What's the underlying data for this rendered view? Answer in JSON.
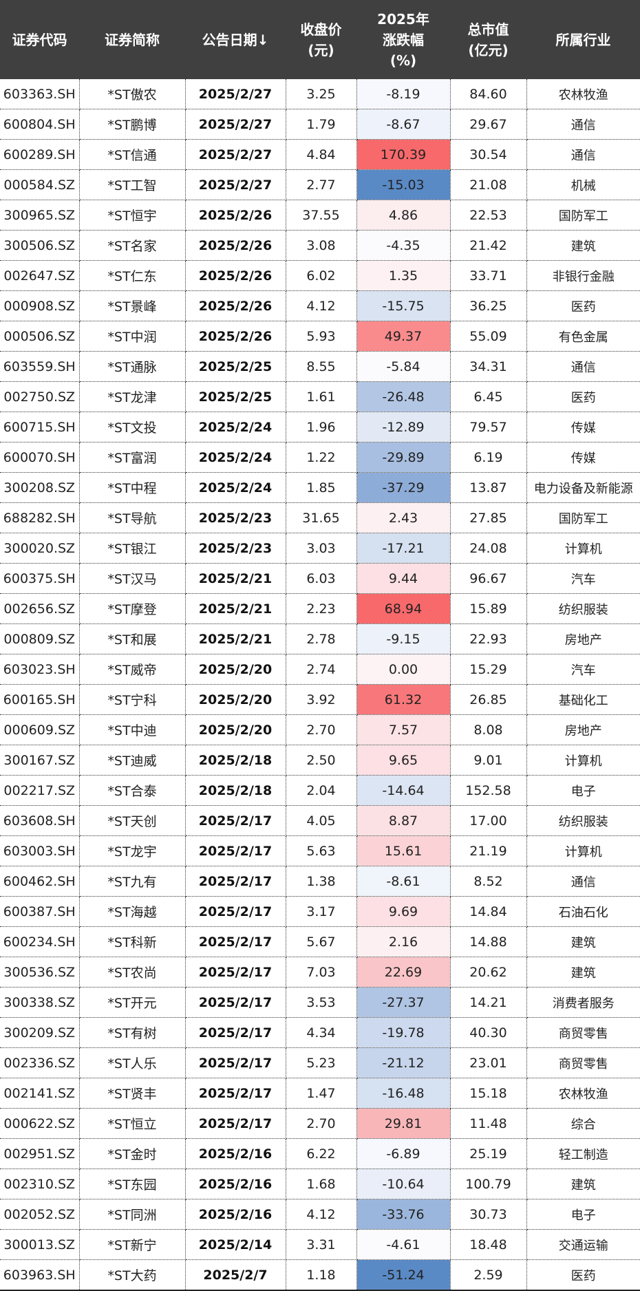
{
  "table": {
    "headers": [
      {
        "lines": [
          "证券代码"
        ]
      },
      {
        "lines": [
          "证券简称"
        ]
      },
      {
        "lines": [
          "公告日期↓"
        ]
      },
      {
        "lines": [
          "收盘价",
          "(元)"
        ]
      },
      {
        "lines": [
          "2025年",
          "涨跌幅",
          "(%)"
        ]
      },
      {
        "lines": [
          "总市值",
          "(亿元)"
        ]
      },
      {
        "lines": [
          "所属行业"
        ]
      }
    ],
    "rows": [
      {
        "code": "603363.SH",
        "name": "*ST傲农",
        "date": "2025/2/27",
        "close": "3.25",
        "chg": "-8.19",
        "cap": "84.60",
        "industry": "农林牧渔",
        "color": "#f7f8fd"
      },
      {
        "code": "600804.SH",
        "name": "*ST鹏博",
        "date": "2025/2/27",
        "close": "1.79",
        "chg": "-8.67",
        "cap": "29.67",
        "industry": "通信",
        "color": "#eef2fa"
      },
      {
        "code": "600289.SH",
        "name": "*ST信通",
        "date": "2025/2/27",
        "close": "4.84",
        "chg": "170.39",
        "cap": "30.54",
        "industry": "通信",
        "color": "#f8696b"
      },
      {
        "code": "000584.SZ",
        "name": "*ST工智",
        "date": "2025/2/27",
        "close": "2.77",
        "chg": "-15.03",
        "cap": "21.08",
        "industry": "机械",
        "color": "#5a8ac6"
      },
      {
        "code": "300965.SZ",
        "name": "*ST恒宇",
        "date": "2025/2/26",
        "close": "37.55",
        "chg": "4.86",
        "cap": "22.53",
        "industry": "国防军工",
        "color": "#fcedef"
      },
      {
        "code": "300506.SZ",
        "name": "*ST名家",
        "date": "2025/2/26",
        "close": "3.08",
        "chg": "-4.35",
        "cap": "21.42",
        "industry": "建筑",
        "color": "#fbfbfe"
      },
      {
        "code": "002647.SZ",
        "name": "*ST仁东",
        "date": "2025/2/26",
        "close": "6.02",
        "chg": "1.35",
        "cap": "33.71",
        "industry": "非银行金融",
        "color": "#fdf1f3"
      },
      {
        "code": "000908.SZ",
        "name": "*ST景峰",
        "date": "2025/2/26",
        "close": "4.12",
        "chg": "-15.75",
        "cap": "36.25",
        "industry": "医药",
        "color": "#d9e3f1"
      },
      {
        "code": "000506.SZ",
        "name": "*ST中润",
        "date": "2025/2/26",
        "close": "5.93",
        "chg": "49.37",
        "cap": "55.09",
        "industry": "有色金属",
        "color": "#f98b8d"
      },
      {
        "code": "603559.SH",
        "name": "*ST通脉",
        "date": "2025/2/25",
        "close": "8.55",
        "chg": "-5.84",
        "cap": "34.31",
        "industry": "通信",
        "color": "#fbfbfe"
      },
      {
        "code": "002750.SZ",
        "name": "*ST龙津",
        "date": "2025/2/25",
        "close": "1.61",
        "chg": "-26.48",
        "cap": "6.45",
        "industry": "医药",
        "color": "#b3c7e5"
      },
      {
        "code": "600715.SH",
        "name": "*ST文投",
        "date": "2025/2/24",
        "close": "1.96",
        "chg": "-12.89",
        "cap": "79.57",
        "industry": "传媒",
        "color": "#e2e9f5"
      },
      {
        "code": "600070.SH",
        "name": "*ST富润",
        "date": "2025/2/24",
        "close": "1.22",
        "chg": "-29.89",
        "cap": "6.19",
        "industry": "传媒",
        "color": "#a8bfe1"
      },
      {
        "code": "300208.SZ",
        "name": "*ST中程",
        "date": "2025/2/24",
        "close": "1.85",
        "chg": "-37.29",
        "cap": "13.87",
        "industry": "电力设备及新能源",
        "color": "#8eacd8"
      },
      {
        "code": "688282.SH",
        "name": "*ST导航",
        "date": "2025/2/23",
        "close": "31.65",
        "chg": "2.43",
        "cap": "27.85",
        "industry": "国防军工",
        "color": "#fdf0f2"
      },
      {
        "code": "300020.SZ",
        "name": "*ST银江",
        "date": "2025/2/23",
        "close": "3.03",
        "chg": "-17.21",
        "cap": "24.08",
        "industry": "计算机",
        "color": "#d5e0f0"
      },
      {
        "code": "600375.SH",
        "name": "*ST汉马",
        "date": "2025/2/21",
        "close": "6.03",
        "chg": "9.44",
        "cap": "96.67",
        "industry": "汽车",
        "color": "#fce0e3"
      },
      {
        "code": "002656.SZ",
        "name": "*ST摩登",
        "date": "2025/2/21",
        "close": "2.23",
        "chg": "68.94",
        "cap": "15.89",
        "industry": "纺织服装",
        "color": "#f8696b"
      },
      {
        "code": "000809.SZ",
        "name": "*ST和展",
        "date": "2025/2/21",
        "close": "2.78",
        "chg": "-9.15",
        "cap": "22.93",
        "industry": "房地产",
        "color": "#edf1f9"
      },
      {
        "code": "603023.SH",
        "name": "*ST威帝",
        "date": "2025/2/20",
        "close": "2.74",
        "chg": "0.00",
        "cap": "15.29",
        "industry": "汽车",
        "color": "#fdf3f5"
      },
      {
        "code": "600165.SH",
        "name": "*ST宁科",
        "date": "2025/2/20",
        "close": "3.92",
        "chg": "61.32",
        "cap": "26.85",
        "industry": "基础化工",
        "color": "#f8777a"
      },
      {
        "code": "000609.SZ",
        "name": "*ST中迪",
        "date": "2025/2/20",
        "close": "2.70",
        "chg": "7.57",
        "cap": "8.08",
        "industry": "房地产",
        "color": "#fce3e6"
      },
      {
        "code": "300167.SZ",
        "name": "*ST迪威",
        "date": "2025/2/18",
        "close": "2.50",
        "chg": "9.65",
        "cap": "9.01",
        "industry": "计算机",
        "color": "#fce0e3"
      },
      {
        "code": "002217.SZ",
        "name": "*ST合泰",
        "date": "2025/2/18",
        "close": "2.04",
        "chg": "-14.64",
        "cap": "152.58",
        "industry": "电子",
        "color": "#dce5f3"
      },
      {
        "code": "603608.SH",
        "name": "*ST天创",
        "date": "2025/2/17",
        "close": "4.05",
        "chg": "8.87",
        "cap": "17.00",
        "industry": "纺织服装",
        "color": "#fce1e4"
      },
      {
        "code": "603003.SH",
        "name": "*ST龙宇",
        "date": "2025/2/17",
        "close": "5.63",
        "chg": "15.61",
        "cap": "21.19",
        "industry": "计算机",
        "color": "#fbd3d6"
      },
      {
        "code": "600462.SH",
        "name": "*ST九有",
        "date": "2025/2/17",
        "close": "1.38",
        "chg": "-8.61",
        "cap": "8.52",
        "industry": "通信",
        "color": "#f0f4fb"
      },
      {
        "code": "600387.SH",
        "name": "*ST海越",
        "date": "2025/2/17",
        "close": "3.17",
        "chg": "9.69",
        "cap": "14.84",
        "industry": "石油石化",
        "color": "#fce0e3"
      },
      {
        "code": "600234.SH",
        "name": "*ST科新",
        "date": "2025/2/17",
        "close": "5.67",
        "chg": "2.16",
        "cap": "14.88",
        "industry": "建筑",
        "color": "#fdf0f2"
      },
      {
        "code": "300536.SZ",
        "name": "*ST农尚",
        "date": "2025/2/17",
        "close": "7.03",
        "chg": "22.69",
        "cap": "20.62",
        "industry": "建筑",
        "color": "#fac5c8"
      },
      {
        "code": "300338.SZ",
        "name": "*ST开元",
        "date": "2025/2/17",
        "close": "3.53",
        "chg": "-27.37",
        "cap": "14.21",
        "industry": "消费者服务",
        "color": "#b0c5e4"
      },
      {
        "code": "300209.SZ",
        "name": "*ST有树",
        "date": "2025/2/17",
        "close": "4.34",
        "chg": "-19.78",
        "cap": "40.30",
        "industry": "商贸零售",
        "color": "#ccd9ee"
      },
      {
        "code": "002336.SZ",
        "name": "*ST人乐",
        "date": "2025/2/17",
        "close": "5.23",
        "chg": "-21.12",
        "cap": "23.01",
        "industry": "商贸零售",
        "color": "#c6d5ec"
      },
      {
        "code": "002141.SZ",
        "name": "*ST贤丰",
        "date": "2025/2/17",
        "close": "1.47",
        "chg": "-16.48",
        "cap": "15.18",
        "industry": "农林牧渔",
        "color": "#d6e1f1"
      },
      {
        "code": "000622.SZ",
        "name": "*ST恒立",
        "date": "2025/2/17",
        "close": "2.70",
        "chg": "29.81",
        "cap": "11.48",
        "industry": "综合",
        "color": "#f9b6b9"
      },
      {
        "code": "002951.SZ",
        "name": "*ST金时",
        "date": "2025/2/16",
        "close": "6.22",
        "chg": "-6.89",
        "cap": "25.19",
        "industry": "轻工制造",
        "color": "#f6f8fd"
      },
      {
        "code": "002310.SZ",
        "name": "*ST东园",
        "date": "2025/2/16",
        "close": "1.68",
        "chg": "-10.64",
        "cap": "100.79",
        "industry": "建筑",
        "color": "#e9eef8"
      },
      {
        "code": "002052.SZ",
        "name": "*ST同洲",
        "date": "2025/2/16",
        "close": "4.12",
        "chg": "-33.76",
        "cap": "30.73",
        "industry": "电子",
        "color": "#9bb6dc"
      },
      {
        "code": "300013.SZ",
        "name": "*ST新宁",
        "date": "2025/2/14",
        "close": "3.31",
        "chg": "-4.61",
        "cap": "18.48",
        "industry": "交通运输",
        "color": "#fbfbfe"
      },
      {
        "code": "603963.SH",
        "name": "*ST大药",
        "date": "2025/2/7",
        "close": "1.18",
        "chg": "-51.24",
        "cap": "2.59",
        "industry": "医药",
        "color": "#5a8ac6"
      }
    ]
  }
}
